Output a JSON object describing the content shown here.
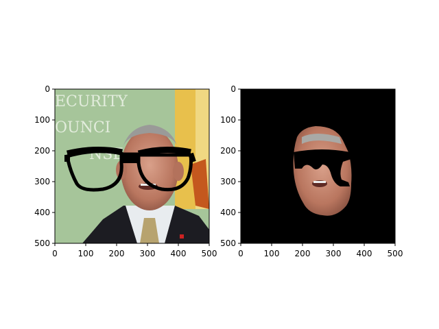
{
  "chart_data": [
    {
      "type": "image",
      "title": "",
      "xlabel": "",
      "ylabel": "",
      "xlim": [
        0,
        500
      ],
      "ylim": [
        500,
        0
      ],
      "xticks": [
        0,
        100,
        200,
        300,
        400,
        500
      ],
      "yticks": [
        0,
        100,
        200,
        300,
        400,
        500
      ],
      "background": "photo",
      "overlay": "black glasses",
      "sign_text": [
        "ECURITY",
        "OUNCI",
        "NSE"
      ],
      "colors": {
        "backdrop": "#a6c59a",
        "flag": "#e8c04c",
        "suit": "#1c1c22",
        "skin": "#c98a74"
      }
    },
    {
      "type": "image",
      "title": "",
      "xlabel": "",
      "ylabel": "",
      "xlim": [
        0,
        500
      ],
      "ylim": [
        500,
        0
      ],
      "xticks": [
        0,
        100,
        200,
        300,
        400,
        500
      ],
      "yticks": [
        0,
        100,
        200,
        300,
        400,
        500
      ],
      "background": "black",
      "overlay": "segmented face with partial glasses",
      "colors": {
        "backdrop": "#000000",
        "skin": "#c98a74"
      }
    }
  ]
}
